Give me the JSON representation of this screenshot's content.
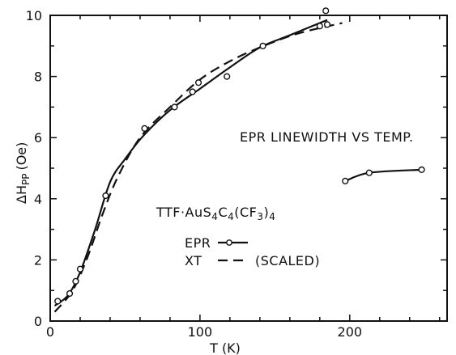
{
  "chart_data": {
    "type": "line",
    "xlabel": "T (K)",
    "ylabel": "ΔH",
    "ylabel_subscript": "PP",
    "ylabel_unit": "(Oe)",
    "xlim": [
      0,
      260
    ],
    "ylim": [
      0,
      10
    ],
    "x_ticks": [
      0,
      100,
      200
    ],
    "y_ticks": [
      0,
      2,
      4,
      6,
      8,
      10
    ],
    "grid": false,
    "annotations": {
      "title_text": "EPR LINEWIDTH VS TEMP.",
      "compound": {
        "base": "TTF·AuS",
        "sub1": "4",
        "mid1": "C",
        "sub2": "4",
        "mid2": "(CF",
        "sub3": "3",
        "mid3": ")",
        "sub4": "4"
      }
    },
    "legend": {
      "placement": "lower-left",
      "entries": [
        {
          "label": "EPR",
          "style": "solid-with-circle"
        },
        {
          "label": "XT",
          "style": "dashed",
          "note": "(SCALED)"
        }
      ]
    },
    "series": [
      {
        "name": "EPR",
        "style": "markers",
        "points": [
          [
            5,
            0.65
          ],
          [
            13,
            0.9
          ],
          [
            17,
            1.3
          ],
          [
            20,
            1.7
          ],
          [
            37,
            4.1
          ],
          [
            63,
            6.3
          ],
          [
            83,
            7.0
          ],
          [
            95,
            7.5
          ],
          [
            99,
            7.8
          ],
          [
            118,
            8.0
          ],
          [
            142,
            9.0
          ],
          [
            180,
            9.65
          ],
          [
            184,
            10.15
          ],
          [
            185,
            9.7
          ],
          [
            197,
            4.58
          ],
          [
            213,
            4.85
          ],
          [
            248,
            4.95
          ]
        ]
      },
      {
        "name": "EPR",
        "style": "solid",
        "points": [
          [
            3,
            0.5
          ],
          [
            12,
            0.85
          ],
          [
            20,
            1.6
          ],
          [
            30,
            3.0
          ],
          [
            40,
            4.55
          ],
          [
            50,
            5.3
          ],
          [
            62,
            6.05
          ],
          [
            80,
            6.9
          ],
          [
            100,
            7.6
          ],
          [
            120,
            8.3
          ],
          [
            140,
            8.95
          ],
          [
            160,
            9.35
          ],
          [
            185,
            9.85
          ]
        ]
      },
      {
        "name": "EPR",
        "style": "solid",
        "points": [
          [
            197,
            4.58
          ],
          [
            213,
            4.85
          ],
          [
            248,
            4.95
          ]
        ]
      },
      {
        "name": "XT",
        "style": "dashed",
        "points": [
          [
            3,
            0.3
          ],
          [
            15,
            1.0
          ],
          [
            25,
            2.1
          ],
          [
            35,
            3.5
          ],
          [
            45,
            4.7
          ],
          [
            60,
            6.0
          ],
          [
            80,
            7.0
          ],
          [
            100,
            7.9
          ],
          [
            120,
            8.5
          ],
          [
            140,
            8.95
          ],
          [
            165,
            9.4
          ],
          [
            195,
            9.75
          ]
        ]
      }
    ]
  }
}
